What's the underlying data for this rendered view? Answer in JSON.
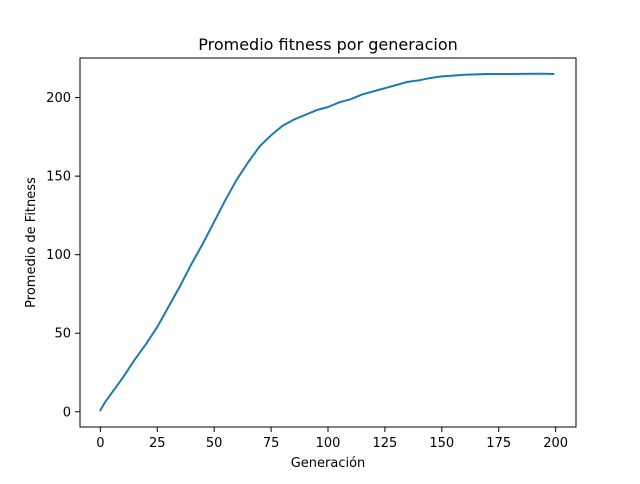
{
  "chart_data": {
    "type": "line",
    "title": "Promedio fitness por generacion",
    "xlabel": "Generación",
    "ylabel": "Promedio de Fitness",
    "xlim": [
      -8.95,
      208.95
    ],
    "ylim": [
      -9.7,
      225.2
    ],
    "xticks": [
      0,
      25,
      50,
      75,
      100,
      125,
      150,
      175,
      200
    ],
    "yticks": [
      0,
      50,
      100,
      150,
      200
    ],
    "grid": false,
    "legend": "none",
    "series": [
      {
        "color": "#1f77b4",
        "x": [
          0,
          2,
          5,
          10,
          15,
          20,
          25,
          30,
          35,
          40,
          45,
          50,
          55,
          60,
          65,
          70,
          75,
          80,
          85,
          90,
          95,
          100,
          105,
          110,
          115,
          120,
          125,
          130,
          135,
          140,
          145,
          150,
          155,
          160,
          165,
          170,
          175,
          180,
          185,
          190,
          195,
          199
        ],
        "y": [
          1,
          6,
          12,
          22,
          33,
          43,
          54,
          67,
          80,
          94,
          107,
          121,
          135,
          148,
          159,
          169,
          176,
          182,
          186,
          189,
          192,
          194,
          197,
          199,
          202,
          204,
          206,
          208,
          210,
          211,
          212.5,
          213.5,
          214,
          214.5,
          214.8,
          215,
          215,
          215,
          215.1,
          215.2,
          215.2,
          215
        ]
      }
    ]
  }
}
